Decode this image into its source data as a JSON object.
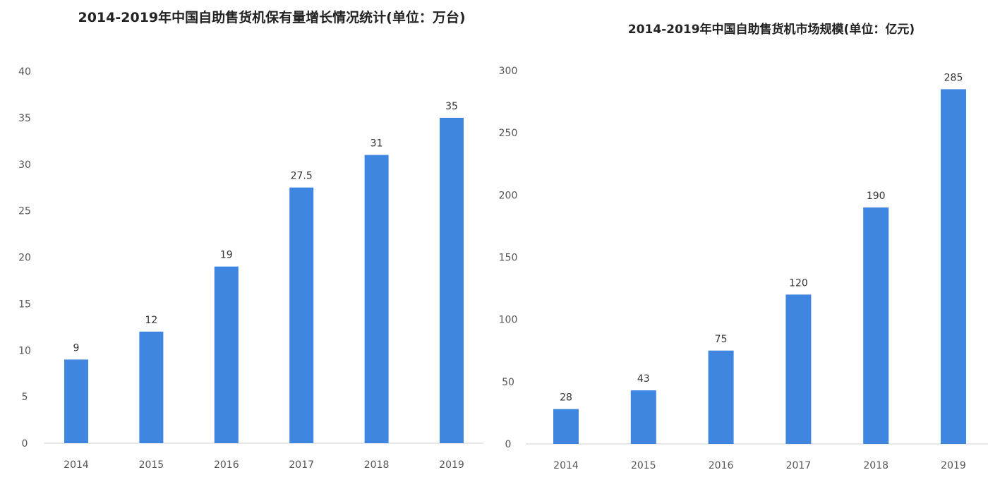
{
  "chart_data": [
    {
      "type": "bar",
      "title": "2014-2019年中国自助售货机保有量增长情况统计(单位：万台)",
      "categories": [
        "2014",
        "2015",
        "2016",
        "2017",
        "2018",
        "2019"
      ],
      "values": [
        9,
        12,
        19,
        27.5,
        31,
        35
      ],
      "data_labels": [
        "9",
        "12",
        "19",
        "27.5",
        "31",
        "35"
      ],
      "ylim": [
        0,
        40
      ],
      "yticks": [
        0,
        5,
        10,
        15,
        20,
        25,
        30,
        35,
        40
      ],
      "grid": false,
      "bar_color": "#3f86e0"
    },
    {
      "type": "bar",
      "title": "2014-2019年中国自助售货机市场规模(单位：亿元)",
      "categories": [
        "2014",
        "2015",
        "2016",
        "2017",
        "2018",
        "2019"
      ],
      "values": [
        28,
        43,
        75,
        120,
        190,
        285
      ],
      "data_labels": [
        "28",
        "43",
        "75",
        "120",
        "190",
        "285"
      ],
      "ylim": [
        0,
        300
      ],
      "yticks": [
        0,
        50,
        100,
        150,
        200,
        250,
        300
      ],
      "grid": false,
      "bar_color": "#3f86e0"
    }
  ]
}
